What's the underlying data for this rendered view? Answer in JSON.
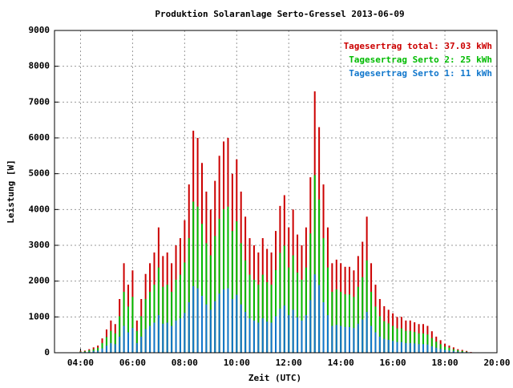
{
  "chart_data": {
    "type": "bar",
    "title": "Produktion Solaranlage Serto-Gressel 2013-06-09",
    "xlabel": "Zeit (UTC)",
    "ylabel": "Leistung [W]",
    "x": [
      240,
      250,
      260,
      270,
      280,
      290,
      300,
      310,
      320,
      330,
      340,
      350,
      360,
      370,
      380,
      390,
      400,
      410,
      420,
      430,
      440,
      450,
      460,
      470,
      480,
      490,
      500,
      510,
      520,
      530,
      540,
      550,
      560,
      570,
      580,
      590,
      600,
      610,
      620,
      630,
      640,
      650,
      660,
      670,
      680,
      690,
      700,
      710,
      720,
      730,
      740,
      750,
      760,
      770,
      780,
      790,
      800,
      810,
      820,
      830,
      840,
      850,
      860,
      870,
      880,
      890,
      900,
      910,
      920,
      930,
      940,
      950,
      960,
      970,
      980,
      990,
      1000,
      1010,
      1020,
      1030,
      1040,
      1050,
      1060,
      1070,
      1080,
      1090,
      1100,
      1110,
      1120,
      1130,
      1140
    ],
    "series": [
      {
        "name": "Tagesertrag total: 37.03 kWh",
        "color": "#cc0000",
        "values": [
          50,
          60,
          100,
          150,
          200,
          400,
          650,
          900,
          800,
          1500,
          2500,
          1900,
          2300,
          900,
          1500,
          2200,
          2500,
          2800,
          3500,
          2700,
          2800,
          2500,
          3000,
          3200,
          3700,
          4700,
          6200,
          6000,
          5300,
          4500,
          4000,
          4800,
          5500,
          5900,
          6000,
          5000,
          5400,
          4500,
          3800,
          3200,
          3000,
          2800,
          3200,
          2900,
          2800,
          3400,
          4100,
          4400,
          3500,
          4000,
          3300,
          3000,
          3500,
          4900,
          7300,
          6300,
          4700,
          3500,
          2500,
          2600,
          2500,
          2400,
          2400,
          2300,
          2700,
          3100,
          3800,
          2500,
          1900,
          1500,
          1300,
          1200,
          1100,
          1000,
          1000,
          900,
          900,
          850,
          800,
          800,
          750,
          600,
          450,
          350,
          250,
          200,
          150,
          100,
          80,
          50,
          20
        ]
      },
      {
        "name": "Tagesertrag Serto 2: 25 kWh",
        "color": "#00bb00",
        "values": [
          30,
          40,
          70,
          100,
          140,
          270,
          440,
          610,
          540,
          1020,
          1700,
          1290,
          1560,
          610,
          1020,
          1500,
          1700,
          1900,
          2380,
          1840,
          1900,
          1700,
          2040,
          2180,
          2520,
          3200,
          4220,
          4080,
          3600,
          3060,
          2720,
          3260,
          3740,
          4010,
          4080,
          3400,
          3670,
          3060,
          2580,
          2180,
          2040,
          1900,
          2180,
          1970,
          1900,
          2310,
          2790,
          2990,
          2380,
          2720,
          2240,
          2040,
          2380,
          3330,
          4960,
          4280,
          3200,
          2380,
          1700,
          1770,
          1700,
          1630,
          1630,
          1560,
          1840,
          2110,
          2580,
          1700,
          1290,
          1020,
          880,
          820,
          750,
          680,
          680,
          610,
          610,
          580,
          540,
          540,
          510,
          410,
          310,
          240,
          170,
          140,
          100,
          70,
          50,
          30,
          10
        ]
      },
      {
        "name": "Tagesertrag Serto 1: 11 kWh",
        "color": "#1177cc",
        "values": [
          20,
          20,
          30,
          50,
          60,
          120,
          200,
          270,
          240,
          450,
          750,
          570,
          690,
          270,
          450,
          660,
          750,
          840,
          1050,
          810,
          840,
          750,
          900,
          960,
          1110,
          1410,
          1860,
          1800,
          1590,
          1350,
          1200,
          1440,
          1650,
          1770,
          1800,
          1500,
          1620,
          1350,
          1140,
          960,
          900,
          840,
          960,
          870,
          840,
          1020,
          1230,
          1320,
          1050,
          1200,
          990,
          900,
          1050,
          1470,
          2190,
          1890,
          1410,
          1050,
          750,
          780,
          750,
          720,
          720,
          690,
          810,
          930,
          1140,
          750,
          570,
          450,
          390,
          360,
          330,
          300,
          300,
          270,
          270,
          260,
          240,
          240,
          230,
          180,
          140,
          110,
          80,
          60,
          50,
          30,
          20,
          20,
          10
        ]
      }
    ],
    "xlim": [
      180,
      1200
    ],
    "xticks": [
      {
        "value": 240,
        "label": "04:00"
      },
      {
        "value": 360,
        "label": "06:00"
      },
      {
        "value": 480,
        "label": "08:00"
      },
      {
        "value": 600,
        "label": "10:00"
      },
      {
        "value": 720,
        "label": "12:00"
      },
      {
        "value": 840,
        "label": "14:00"
      },
      {
        "value": 960,
        "label": "16:00"
      },
      {
        "value": 1080,
        "label": "18:00"
      },
      {
        "value": 1200,
        "label": "20:00"
      }
    ],
    "ylim": [
      0,
      9000
    ],
    "yticks": [
      0,
      1000,
      2000,
      3000,
      4000,
      5000,
      6000,
      7000,
      8000,
      9000
    ],
    "grid": true,
    "legend": "top-right"
  }
}
